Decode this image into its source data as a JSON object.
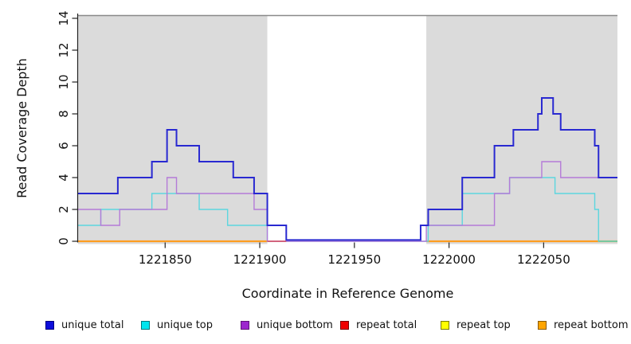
{
  "chart_data": {
    "type": "step",
    "title": "",
    "xlabel": "Coordinate in Reference Genome",
    "ylabel": "Read Coverage Depth",
    "x_domain": [
      1221804,
      1222089
    ],
    "y_domain": [
      0,
      14
    ],
    "grid": false,
    "background_color": "#ffffff",
    "shaded_region_color": "#dbdbdb",
    "shaded_regions": [
      [
        1221804,
        1221904
      ],
      [
        1221988,
        1222089
      ]
    ],
    "top_border_color": "#8a8a8a",
    "x_ticks": [
      {
        "coord": 1221850,
        "label": "1221850"
      },
      {
        "coord": 1221900,
        "label": "1221900"
      },
      {
        "coord": 1221950,
        "label": "1221950"
      },
      {
        "coord": 1222000,
        "label": "1222000"
      },
      {
        "coord": 1222050,
        "label": "1222050"
      }
    ],
    "y_ticks": [
      {
        "value": 0,
        "label": "0"
      },
      {
        "value": 2,
        "label": "2"
      },
      {
        "value": 4,
        "label": "4"
      },
      {
        "value": 6,
        "label": "6"
      },
      {
        "value": 8,
        "label": "8"
      },
      {
        "value": 10,
        "label": "10"
      },
      {
        "value": 12,
        "label": "12"
      },
      {
        "value": 14,
        "label": "14"
      }
    ],
    "series": [
      {
        "name": "repeat bottom",
        "color": "#ff9d20",
        "width": 2.2,
        "flat": [
          {
            "from": 1221804,
            "to": 1221904,
            "value": 0
          },
          {
            "from": 1221988,
            "to": 1222089,
            "value": 0
          }
        ]
      },
      {
        "name": "repeat top",
        "color": "#ffff00",
        "width": 1.6,
        "flat": []
      },
      {
        "name": "unique top",
        "color": "#5cd6df",
        "width": 1.4,
        "x_end": 1222089,
        "steps": [
          [
            1221804,
            1
          ],
          [
            1221816,
            2
          ],
          [
            1221843,
            3
          ],
          [
            1221868,
            2
          ],
          [
            1221883,
            1
          ],
          [
            1221904,
            0
          ],
          [
            1221989,
            1
          ],
          [
            1222007,
            3
          ],
          [
            1222032,
            4
          ],
          [
            1222056,
            3
          ],
          [
            1222077,
            2
          ],
          [
            1222079,
            0
          ]
        ]
      },
      {
        "name": "unique bottom",
        "color": "#b47bd8",
        "width": 1.4,
        "x_end": 1222089,
        "steps": [
          [
            1221804,
            2
          ],
          [
            1221816,
            1
          ],
          [
            1221826,
            2
          ],
          [
            1221851,
            4
          ],
          [
            1221856,
            3
          ],
          [
            1221897,
            2
          ],
          [
            1221904,
            0
          ],
          [
            1221988,
            1
          ],
          [
            1222024,
            3
          ],
          [
            1222032,
            4
          ],
          [
            1222049,
            5
          ],
          [
            1222059,
            4
          ]
        ]
      },
      {
        "name": "unique total",
        "color": "#2929d1",
        "width": 2,
        "zero_lift": 1.6,
        "x_end": 1222089,
        "steps": [
          [
            1221804,
            3
          ],
          [
            1221825,
            4
          ],
          [
            1221843,
            5
          ],
          [
            1221851,
            7
          ],
          [
            1221856,
            6
          ],
          [
            1221868,
            5
          ],
          [
            1221886,
            4
          ],
          [
            1221897,
            3
          ],
          [
            1221904,
            1
          ],
          [
            1221914,
            0
          ],
          [
            1221985,
            1
          ],
          [
            1221989,
            2
          ],
          [
            1222007,
            4
          ],
          [
            1222024,
            6
          ],
          [
            1222034,
            7
          ],
          [
            1222047,
            8
          ],
          [
            1222049,
            9
          ],
          [
            1222055,
            8
          ],
          [
            1222059,
            7
          ],
          [
            1222077,
            6
          ],
          [
            1222079,
            4
          ]
        ]
      },
      {
        "name": "repeat total",
        "color": "#de4b5c",
        "width": 1.6,
        "flat": [
          {
            "from": 1221904,
            "to": 1221914,
            "value": 0
          }
        ]
      }
    ],
    "blend_overlays": [
      {
        "from": 1222079,
        "to": 1222089,
        "value": 0,
        "color": "#66cdaa",
        "width": 1.6
      }
    ]
  },
  "legend": {
    "items": [
      {
        "label": "unique total",
        "fill": "#0d0ddb",
        "border": "#000080"
      },
      {
        "label": "unique top",
        "fill": "#00e5ee",
        "border": "#00777d"
      },
      {
        "label": "unique bottom",
        "fill": "#9c27ce",
        "border": "#5e1578"
      },
      {
        "label": "repeat total",
        "fill": "#f00000",
        "border": "#7a0000"
      },
      {
        "label": "repeat top",
        "fill": "#ffff00",
        "border": "#7a7a00"
      },
      {
        "label": "repeat bottom",
        "fill": "#ffa500",
        "border": "#8a5a00"
      }
    ]
  }
}
